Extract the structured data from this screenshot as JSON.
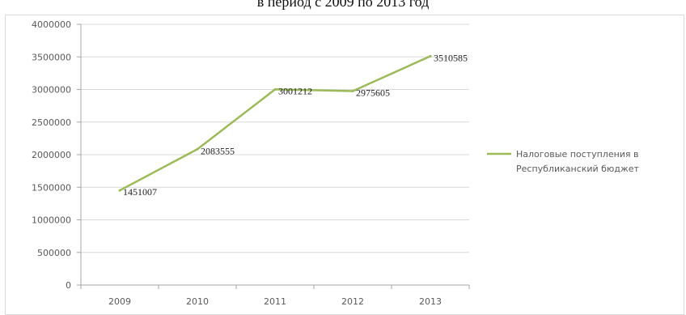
{
  "chart_data": {
    "type": "line",
    "title": "в период с 2009 по 2013 год",
    "xlabel": "",
    "ylabel": "",
    "categories": [
      "2009",
      "2010",
      "2011",
      "2012",
      "2013"
    ],
    "series": [
      {
        "name": "Налоговые поступления в Республиканский бюджет",
        "values": [
          1451007,
          2083555,
          3001212,
          2975605,
          3510585
        ],
        "labels": [
          "1451007",
          "2083555",
          "3001212",
          "2975605",
          "3510585"
        ],
        "color": "#9bbb59"
      }
    ],
    "ylim": [
      0,
      4000000
    ],
    "yticks": [
      0,
      500000,
      1000000,
      1500000,
      2000000,
      2500000,
      3000000,
      3500000,
      4000000
    ],
    "ytick_labels": [
      "0",
      "500000",
      "1000000",
      "1500000",
      "2000000",
      "2500000",
      "3000000",
      "3500000",
      "4000000"
    ],
    "grid": true,
    "legend_position": "right",
    "legend_lines": [
      "Налоговые поступления в",
      "Республиканский бюджет"
    ]
  }
}
